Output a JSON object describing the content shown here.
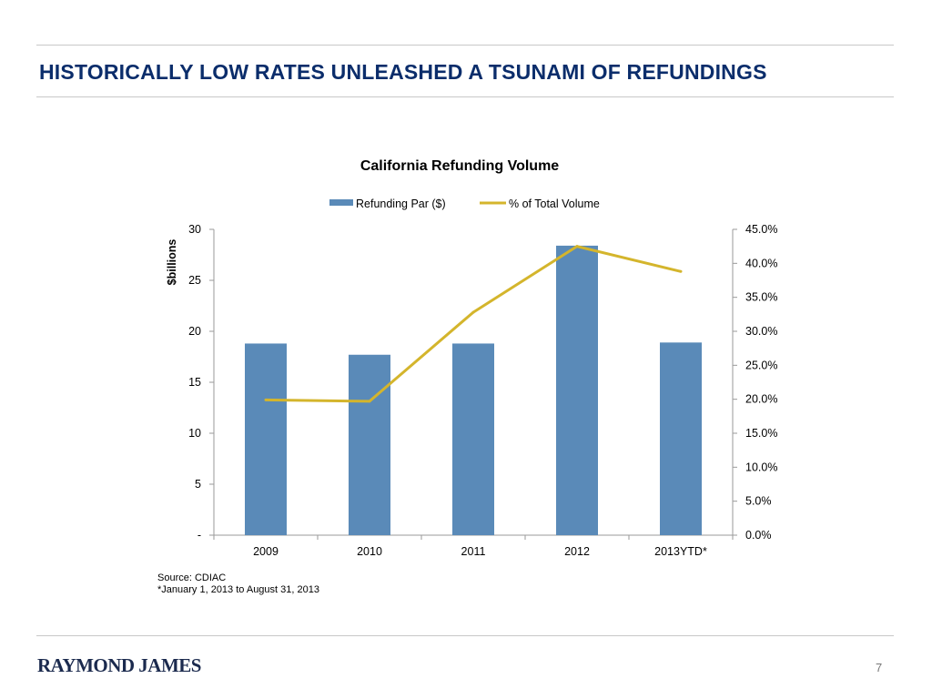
{
  "slide": {
    "title": "HISTORICALLY LOW RATES UNLEASHED A TSUNAMI OF REFUNDINGS",
    "logo": "RAYMOND JAMES",
    "page_number": "7"
  },
  "footnotes": [
    "Source: CDIAC",
    "*January 1, 2013 to August 31, 2013"
  ],
  "colors": {
    "title": "#0b2d6b",
    "bar": "#5a8ab8",
    "line": "#d4b52c"
  },
  "chart_data": {
    "type": "bar",
    "title": "California Refunding Volume",
    "categories": [
      "2009",
      "2010",
      "2011",
      "2012",
      "2013YTD*"
    ],
    "series": [
      {
        "name": "Refunding Par ($)",
        "type": "bar",
        "axis": "left",
        "values": [
          18.8,
          17.7,
          18.8,
          28.4,
          18.9
        ]
      },
      {
        "name": "% of Total Volume",
        "type": "line",
        "axis": "right",
        "values": [
          19.9,
          19.7,
          32.8,
          42.5,
          38.8
        ]
      }
    ],
    "ylabel": "$billions",
    "ylim": [
      0,
      30
    ],
    "yticks": [
      "-",
      "5",
      "10",
      "15",
      "20",
      "25",
      "30"
    ],
    "y2lim": [
      0,
      45
    ],
    "y2ticks": [
      "0.0%",
      "5.0%",
      "10.0%",
      "15.0%",
      "20.0%",
      "25.0%",
      "30.0%",
      "35.0%",
      "40.0%",
      "45.0%"
    ],
    "legend": "top-center",
    "grid": false
  }
}
